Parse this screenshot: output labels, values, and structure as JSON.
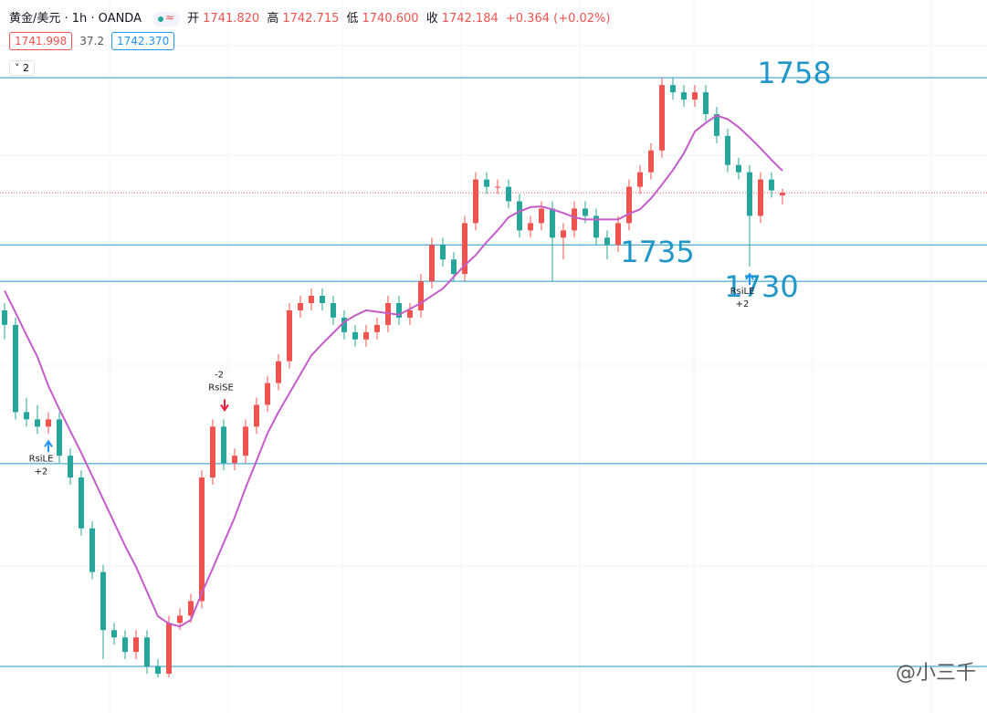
{
  "header": {
    "symbol": "黄金/美元 · 1h · OANDA",
    "open_label": "开",
    "open": "1741.820",
    "high_label": "高",
    "high": "1742.715",
    "low_label": "低",
    "low": "1740.600",
    "close_label": "收",
    "close": "1742.184",
    "change": "+0.364 (+0.02%)",
    "bid": "1741.998",
    "spread": "37.2",
    "ask": "1742.370",
    "collapse": "2",
    "watermark": "@小三千"
  },
  "chart_data": {
    "type": "candlestick",
    "up_color": "#ef5350",
    "down_color": "#26a69a",
    "ma_color": "#c45cc9",
    "level_color": "#2196c8",
    "ylim": [
      1670.6,
      1768.7
    ],
    "open": [
      1726,
      1724,
      1712,
      1711,
      1710,
      1711,
      1706,
      1703,
      1696,
      1690,
      1682,
      1681,
      1679,
      1681,
      1677,
      1676,
      1683,
      1684,
      1686,
      1703,
      1710,
      1705,
      1706,
      1710,
      1713,
      1716,
      1719,
      1726,
      1727,
      1728,
      1727,
      1725,
      1723,
      1722,
      1723,
      1724,
      1727,
      1725,
      1726,
      1730,
      1735,
      1733,
      1731,
      1738,
      1744,
      1743,
      1743,
      1741,
      1737,
      1738,
      1740,
      1736,
      1737,
      1740,
      1739,
      1736,
      1735,
      1738,
      1743,
      1745,
      1748,
      1757,
      1756,
      1755,
      1756,
      1753,
      1750,
      1746,
      1745,
      1739,
      1744,
      1741.82
    ],
    "high": [
      1727,
      1725,
      1714,
      1713,
      1712,
      1712,
      1707,
      1704,
      1697,
      1691,
      1683,
      1682,
      1682,
      1682,
      1678,
      1684,
      1685,
      1687,
      1704,
      1711,
      1711,
      1707,
      1711,
      1714,
      1717,
      1720,
      1727,
      1728,
      1729,
      1729,
      1728,
      1726,
      1724,
      1724,
      1725,
      1728,
      1728,
      1727,
      1731,
      1736,
      1736,
      1734,
      1739,
      1745,
      1745,
      1744,
      1744,
      1742,
      1739,
      1741,
      1741,
      1738,
      1741,
      1741,
      1740,
      1737,
      1739,
      1744,
      1746,
      1749,
      1758,
      1758,
      1757,
      1757,
      1757,
      1754,
      1751,
      1747,
      1746,
      1745,
      1745,
      1742.715
    ],
    "low": [
      1722,
      1711,
      1710,
      1709,
      1709,
      1705,
      1702,
      1695,
      1689,
      1678,
      1680,
      1678,
      1678,
      1676,
      1675.5,
      1675.5,
      1682,
      1683,
      1685,
      1702,
      1704,
      1704,
      1705,
      1709,
      1712,
      1715,
      1718,
      1725,
      1726,
      1726,
      1724,
      1722,
      1721,
      1721,
      1722,
      1723,
      1724,
      1724,
      1725,
      1729,
      1732,
      1730,
      1730,
      1737,
      1742,
      1742,
      1740,
      1736,
      1736,
      1737,
      1730,
      1733,
      1736,
      1738,
      1735,
      1733,
      1734,
      1737,
      1742,
      1744,
      1747,
      1755,
      1754,
      1754,
      1752,
      1749,
      1745,
      1744,
      1732,
      1738,
      1741.5,
      1740.6
    ],
    "close": [
      1724,
      1712,
      1711,
      1710,
      1711,
      1706,
      1703,
      1696,
      1690,
      1682,
      1681,
      1679,
      1681,
      1677,
      1676,
      1683,
      1684,
      1686,
      1703,
      1710,
      1705,
      1706,
      1710,
      1713,
      1716,
      1719,
      1726,
      1727,
      1728,
      1727,
      1725,
      1723,
      1722,
      1723,
      1724,
      1727,
      1725,
      1726,
      1730,
      1735,
      1733,
      1731,
      1738,
      1744,
      1743,
      1743,
      1741,
      1737,
      1738,
      1740,
      1736,
      1737,
      1740,
      1739,
      1736,
      1735,
      1738,
      1743,
      1745,
      1748,
      1757,
      1756,
      1755,
      1756,
      1753,
      1750,
      1746,
      1745,
      1739,
      1744,
      1742.5,
      1742.184
    ],
    "ma": [
      1728.7,
      1725.7,
      1722.6,
      1719.6,
      1715.6,
      1712.4,
      1709.4,
      1706.4,
      1703.2,
      1700,
      1696.8,
      1693.6,
      1690.7,
      1687.3,
      1683.9,
      1682.9,
      1682.5,
      1683.4,
      1687.1,
      1690.5,
      1694,
      1697.5,
      1701.6,
      1705.3,
      1709.1,
      1712,
      1714.6,
      1717.2,
      1719.8,
      1721.4,
      1722.9,
      1724.4,
      1725.3,
      1726,
      1725.8,
      1725.6,
      1725.4,
      1726.2,
      1727,
      1728,
      1729,
      1730.6,
      1732.2,
      1733.6,
      1735.4,
      1737,
      1738.8,
      1739.6,
      1740.2,
      1740.3,
      1739.9,
      1739.4,
      1738.8,
      1738.5,
      1738.5,
      1738.5,
      1738.5,
      1739.3,
      1739.9,
      1741.4,
      1743.3,
      1745.3,
      1747.6,
      1750.6,
      1751.8,
      1752.8,
      1752.3,
      1751.2,
      1749.8,
      1748.3,
      1746.7,
      1745.2
    ],
    "levels": [
      1758,
      1735,
      1730
    ],
    "lines": [
      1704.9,
      1677
    ],
    "signals": [
      {
        "label": "RsiLE",
        "qty": "+2"
      },
      {
        "label": "RsiSE",
        "qty": "-2"
      },
      {
        "label": "RsiLE",
        "qty": "+2"
      }
    ]
  }
}
